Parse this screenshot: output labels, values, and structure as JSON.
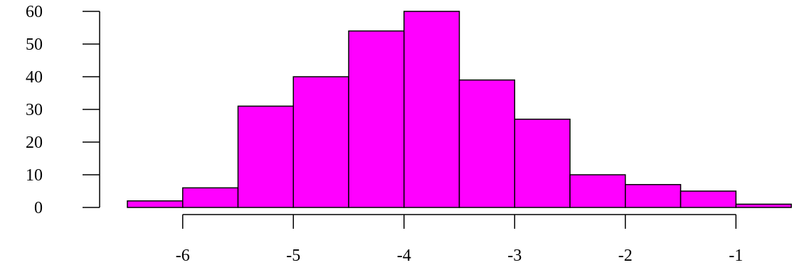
{
  "chart_data": {
    "type": "bar",
    "bins": [
      {
        "x0": -6.5,
        "x1": -6.0,
        "count": 2
      },
      {
        "x0": -6.0,
        "x1": -5.5,
        "count": 6
      },
      {
        "x0": -5.5,
        "x1": -5.0,
        "count": 31
      },
      {
        "x0": -5.0,
        "x1": -4.5,
        "count": 40
      },
      {
        "x0": -4.5,
        "x1": -4.0,
        "count": 54
      },
      {
        "x0": -4.0,
        "x1": -3.5,
        "count": 60
      },
      {
        "x0": -3.5,
        "x1": -3.0,
        "count": 39
      },
      {
        "x0": -3.0,
        "x1": -2.5,
        "count": 27
      },
      {
        "x0": -2.5,
        "x1": -2.0,
        "count": 10
      },
      {
        "x0": -2.0,
        "x1": -1.5,
        "count": 7
      },
      {
        "x0": -1.5,
        "x1": -1.0,
        "count": 5
      },
      {
        "x0": -1.0,
        "x1": -0.5,
        "count": 1
      }
    ],
    "xticks": [
      "-6",
      "-5",
      "-4",
      "-3",
      "-2",
      "-1"
    ],
    "yticks": [
      "0",
      "10",
      "20",
      "30",
      "40",
      "50",
      "60"
    ],
    "xlim": [
      -6.5,
      -0.5
    ],
    "ylim": [
      0,
      60
    ],
    "bar_color": "#ff00ff",
    "grid": false,
    "title": "",
    "xlabel": "",
    "ylabel": ""
  }
}
